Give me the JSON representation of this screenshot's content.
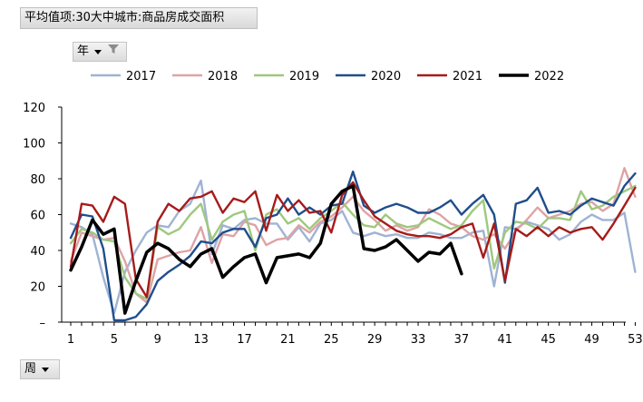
{
  "header": {
    "title": "平均值项:30大中城市:商品房成交面积"
  },
  "filters": {
    "year_label": "年",
    "week_label": "周"
  },
  "colors": {
    "2017": "#9fb3d3",
    "2018": "#dea3a5",
    "2019": "#9fc87d",
    "2020": "#1f4e8c",
    "2021": "#a61b1b",
    "2022": "#000000"
  },
  "chart_data": {
    "type": "line",
    "title": "",
    "xlabel": "",
    "ylabel": "",
    "xlim": [
      1,
      53
    ],
    "ylim": [
      0,
      120
    ],
    "x_ticks": [
      1,
      5,
      9,
      13,
      17,
      21,
      25,
      29,
      33,
      37,
      41,
      45,
      49,
      53
    ],
    "y_ticks": [
      0,
      20,
      40,
      60,
      80,
      100,
      120
    ],
    "y_tick_labels": [
      "–",
      "20",
      "40",
      "60",
      "80",
      "100",
      "120"
    ],
    "legend_position": "top",
    "grid": false,
    "series": [
      {
        "name": "2017",
        "x": [
          1,
          2,
          3,
          4,
          5,
          6,
          7,
          8,
          9,
          10,
          11,
          12,
          13,
          14,
          15,
          16,
          17,
          18,
          19,
          20,
          21,
          22,
          23,
          24,
          25,
          26,
          27,
          28,
          29,
          30,
          31,
          32,
          33,
          34,
          35,
          36,
          37,
          38,
          39,
          40,
          41,
          42,
          43,
          44,
          45,
          46,
          47,
          48,
          49,
          50,
          51,
          52,
          53
        ],
        "values": [
          55,
          53,
          49,
          25,
          5,
          28,
          40,
          50,
          54,
          53,
          62,
          66,
          79,
          38,
          54,
          52,
          57,
          58,
          55,
          55,
          46,
          53,
          45,
          55,
          57,
          62,
          50,
          48,
          50,
          48,
          49,
          47,
          47,
          50,
          49,
          47,
          47,
          50,
          51,
          20,
          53,
          52,
          56,
          54,
          52,
          46,
          49,
          56,
          60,
          57,
          57,
          61,
          28
        ]
      },
      {
        "name": "2018",
        "x": [
          1,
          2,
          3,
          4,
          5,
          6,
          7,
          8,
          9,
          10,
          11,
          12,
          13,
          14,
          15,
          16,
          17,
          18,
          19,
          20,
          21,
          22,
          23,
          24,
          25,
          26,
          27,
          28,
          29,
          30,
          31,
          32,
          33,
          34,
          35,
          36,
          37,
          38,
          39,
          40,
          41,
          42,
          43,
          44,
          45,
          46,
          47,
          48,
          49,
          50,
          51,
          52,
          53
        ],
        "values": [
          34,
          50,
          48,
          46,
          47,
          34,
          16,
          11,
          35,
          37,
          39,
          40,
          53,
          33,
          49,
          48,
          56,
          54,
          43,
          46,
          47,
          54,
          50,
          56,
          59,
          64,
          70,
          62,
          57,
          51,
          54,
          51,
          53,
          63,
          60,
          55,
          53,
          48,
          46,
          49,
          41,
          51,
          57,
          64,
          58,
          60,
          62,
          66,
          67,
          62,
          66,
          86,
          70
        ]
      },
      {
        "name": "2019",
        "x": [
          1,
          2,
          3,
          4,
          5,
          6,
          7,
          8,
          9,
          10,
          11,
          12,
          13,
          14,
          15,
          16,
          17,
          18,
          19,
          20,
          21,
          22,
          23,
          24,
          25,
          26,
          27,
          28,
          29,
          30,
          31,
          32,
          33,
          34,
          35,
          36,
          37,
          38,
          39,
          40,
          41,
          42,
          43,
          44,
          45,
          46,
          47,
          48,
          49,
          50,
          51,
          52,
          53
        ],
        "values": [
          44,
          52,
          50,
          46,
          45,
          25,
          16,
          13,
          53,
          49,
          52,
          60,
          66,
          46,
          56,
          60,
          62,
          40,
          60,
          63,
          55,
          58,
          52,
          58,
          62,
          67,
          60,
          54,
          53,
          60,
          55,
          53,
          54,
          58,
          55,
          52,
          54,
          62,
          68,
          30,
          50,
          56,
          55,
          52,
          58,
          58,
          57,
          73,
          63,
          65,
          70,
          73,
          76
        ]
      },
      {
        "name": "2020",
        "x": [
          1,
          2,
          3,
          4,
          5,
          6,
          7,
          8,
          9,
          10,
          11,
          12,
          13,
          14,
          15,
          16,
          17,
          18,
          19,
          20,
          21,
          22,
          23,
          24,
          25,
          26,
          27,
          28,
          29,
          30,
          31,
          32,
          33,
          34,
          35,
          36,
          37,
          38,
          39,
          40,
          41,
          42,
          43,
          44,
          45,
          46,
          47,
          48,
          49,
          50,
          51,
          52,
          53
        ],
        "values": [
          47,
          60,
          59,
          41,
          1,
          1,
          3,
          10,
          23,
          28,
          32,
          37,
          45,
          44,
          50,
          52,
          52,
          42,
          58,
          60,
          69,
          60,
          64,
          60,
          65,
          66,
          84,
          65,
          61,
          64,
          66,
          64,
          61,
          61,
          64,
          68,
          60,
          66,
          71,
          60,
          22,
          66,
          68,
          75,
          61,
          62,
          60,
          65,
          69,
          67,
          65,
          76,
          83
        ]
      },
      {
        "name": "2021",
        "x": [
          1,
          2,
          3,
          4,
          5,
          6,
          7,
          8,
          9,
          10,
          11,
          12,
          13,
          14,
          15,
          16,
          17,
          18,
          19,
          20,
          21,
          22,
          23,
          24,
          25,
          26,
          27,
          28,
          29,
          30,
          31,
          32,
          33,
          34,
          35,
          36,
          37,
          38,
          39,
          40,
          41,
          42,
          43,
          44,
          45,
          46,
          47,
          48,
          49,
          50,
          51,
          52,
          53
        ],
        "values": [
          31,
          66,
          65,
          56,
          70,
          66,
          24,
          14,
          56,
          66,
          62,
          69,
          70,
          73,
          61,
          69,
          67,
          73,
          51,
          71,
          62,
          68,
          61,
          62,
          50,
          71,
          78,
          68,
          59,
          55,
          51,
          49,
          48,
          48,
          47,
          49,
          53,
          55,
          36,
          55,
          23,
          52,
          48,
          53,
          48,
          53,
          50,
          52,
          53,
          46,
          55,
          65,
          75
        ]
      },
      {
        "name": "2022",
        "x": [
          1,
          2,
          3,
          4,
          5,
          6,
          7,
          8,
          9,
          10,
          11,
          12,
          13,
          14,
          15,
          16,
          17,
          18,
          19,
          20,
          21,
          22,
          23,
          24,
          25,
          26,
          27,
          28,
          29,
          30,
          31,
          32,
          33,
          34,
          35,
          36,
          37
        ],
        "values": [
          29,
          42,
          57,
          49,
          52,
          5,
          23,
          39,
          44,
          41,
          35,
          31,
          38,
          41,
          25,
          31,
          36,
          38,
          22,
          36,
          37,
          38,
          36,
          44,
          66,
          73,
          76,
          41,
          40,
          42,
          46,
          40,
          34,
          39,
          38,
          44,
          27
        ]
      }
    ]
  }
}
